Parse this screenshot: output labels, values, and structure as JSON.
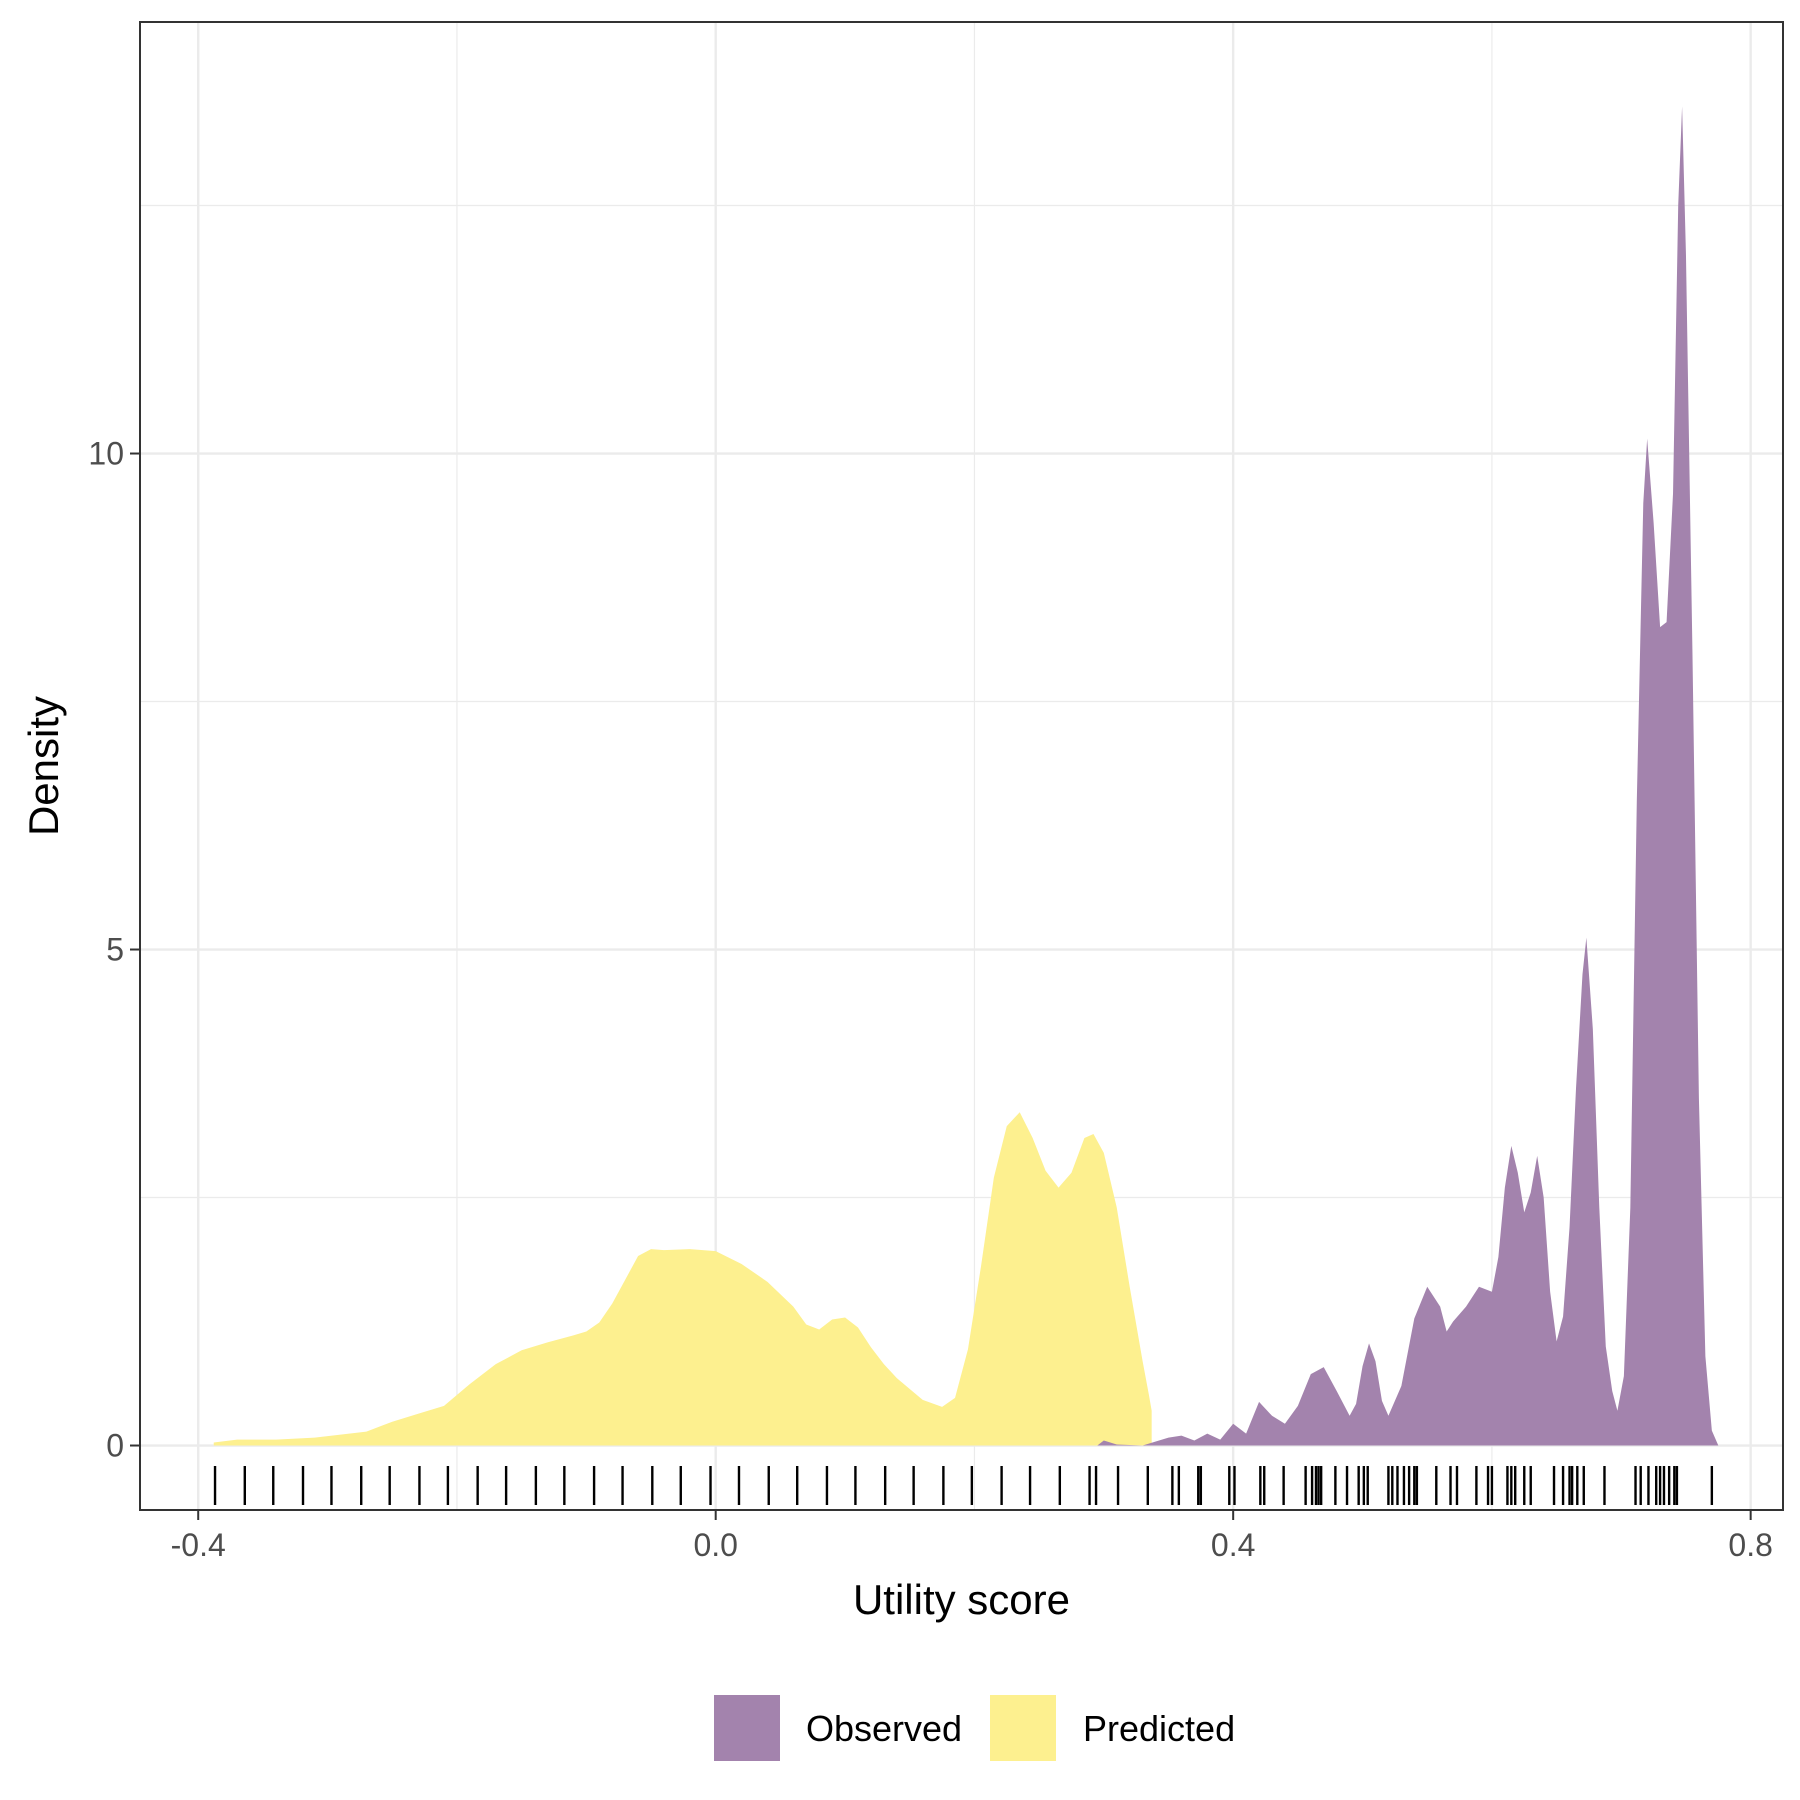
{
  "chart_data": {
    "type": "area",
    "xlabel": "Utility score",
    "ylabel": "Density",
    "xlim": [
      -0.445,
      0.825
    ],
    "ylim": [
      -0.65,
      14.35
    ],
    "x_ticks": [
      -0.4,
      0.0,
      0.4,
      0.8
    ],
    "x_tick_labels": [
      "-0.4",
      "0.0",
      "0.4",
      "0.8"
    ],
    "y_ticks": [
      0,
      5,
      10
    ],
    "y_tick_labels": [
      "0",
      "5",
      "10"
    ],
    "grid": true,
    "legend_position": "bottom",
    "legend": [
      {
        "label": "Observed",
        "color": "#A383AD"
      },
      {
        "label": "Predicted",
        "color": "#FDF08F"
      }
    ],
    "series": [
      {
        "name": "Predicted",
        "color": "#FDF08F",
        "points": [
          [
            -0.388,
            0.03
          ],
          [
            -0.37,
            0.06
          ],
          [
            -0.34,
            0.06
          ],
          [
            -0.31,
            0.08
          ],
          [
            -0.29,
            0.11
          ],
          [
            -0.27,
            0.14
          ],
          [
            -0.25,
            0.24
          ],
          [
            -0.23,
            0.32
          ],
          [
            -0.21,
            0.4
          ],
          [
            -0.19,
            0.62
          ],
          [
            -0.17,
            0.82
          ],
          [
            -0.15,
            0.96
          ],
          [
            -0.13,
            1.04
          ],
          [
            -0.11,
            1.11
          ],
          [
            -0.1,
            1.15
          ],
          [
            -0.09,
            1.24
          ],
          [
            -0.08,
            1.43
          ],
          [
            -0.07,
            1.67
          ],
          [
            -0.06,
            1.91
          ],
          [
            -0.05,
            1.98
          ],
          [
            -0.04,
            1.97
          ],
          [
            -0.02,
            1.98
          ],
          [
            0.0,
            1.96
          ],
          [
            0.02,
            1.83
          ],
          [
            0.04,
            1.65
          ],
          [
            0.06,
            1.4
          ],
          [
            0.07,
            1.22
          ],
          [
            0.08,
            1.17
          ],
          [
            0.09,
            1.27
          ],
          [
            0.1,
            1.29
          ],
          [
            0.11,
            1.19
          ],
          [
            0.12,
            0.99
          ],
          [
            0.13,
            0.82
          ],
          [
            0.14,
            0.68
          ],
          [
            0.16,
            0.46
          ],
          [
            0.175,
            0.39
          ],
          [
            0.185,
            0.48
          ],
          [
            0.195,
            0.97
          ],
          [
            0.205,
            1.8
          ],
          [
            0.215,
            2.7
          ],
          [
            0.225,
            3.22
          ],
          [
            0.235,
            3.36
          ],
          [
            0.245,
            3.1
          ],
          [
            0.255,
            2.77
          ],
          [
            0.265,
            2.6
          ],
          [
            0.275,
            2.75
          ],
          [
            0.285,
            3.1
          ],
          [
            0.292,
            3.14
          ],
          [
            0.3,
            2.95
          ],
          [
            0.31,
            2.4
          ],
          [
            0.32,
            1.6
          ],
          [
            0.33,
            0.85
          ],
          [
            0.335,
            0.5
          ],
          [
            0.337,
            0.35
          ]
        ]
      },
      {
        "name": "Observed",
        "color": "#A383AD",
        "points": [
          [
            0.295,
            0.0
          ],
          [
            0.3,
            0.05
          ],
          [
            0.31,
            0.01
          ],
          [
            0.33,
            0.0
          ],
          [
            0.35,
            0.08
          ],
          [
            0.36,
            0.1
          ],
          [
            0.37,
            0.05
          ],
          [
            0.38,
            0.12
          ],
          [
            0.39,
            0.06
          ],
          [
            0.4,
            0.22
          ],
          [
            0.41,
            0.12
          ],
          [
            0.42,
            0.44
          ],
          [
            0.43,
            0.3
          ],
          [
            0.44,
            0.22
          ],
          [
            0.45,
            0.4
          ],
          [
            0.46,
            0.72
          ],
          [
            0.47,
            0.79
          ],
          [
            0.48,
            0.55
          ],
          [
            0.49,
            0.3
          ],
          [
            0.495,
            0.42
          ],
          [
            0.5,
            0.8
          ],
          [
            0.505,
            1.03
          ],
          [
            0.51,
            0.85
          ],
          [
            0.515,
            0.45
          ],
          [
            0.52,
            0.3
          ],
          [
            0.53,
            0.6
          ],
          [
            0.54,
            1.28
          ],
          [
            0.55,
            1.6
          ],
          [
            0.56,
            1.4
          ],
          [
            0.565,
            1.15
          ],
          [
            0.57,
            1.25
          ],
          [
            0.58,
            1.4
          ],
          [
            0.59,
            1.6
          ],
          [
            0.6,
            1.55
          ],
          [
            0.605,
            1.9
          ],
          [
            0.61,
            2.6
          ],
          [
            0.615,
            3.02
          ],
          [
            0.62,
            2.75
          ],
          [
            0.625,
            2.35
          ],
          [
            0.63,
            2.55
          ],
          [
            0.635,
            2.92
          ],
          [
            0.64,
            2.5
          ],
          [
            0.645,
            1.55
          ],
          [
            0.65,
            1.05
          ],
          [
            0.655,
            1.3
          ],
          [
            0.66,
            2.2
          ],
          [
            0.665,
            3.6
          ],
          [
            0.67,
            4.75
          ],
          [
            0.673,
            5.12
          ],
          [
            0.678,
            4.2
          ],
          [
            0.683,
            2.4
          ],
          [
            0.688,
            1.0
          ],
          [
            0.693,
            0.55
          ],
          [
            0.697,
            0.35
          ],
          [
            0.702,
            0.7
          ],
          [
            0.707,
            2.4
          ],
          [
            0.712,
            6.5
          ],
          [
            0.717,
            9.5
          ],
          [
            0.72,
            10.15
          ],
          [
            0.725,
            9.3
          ],
          [
            0.73,
            8.25
          ],
          [
            0.735,
            8.3
          ],
          [
            0.74,
            9.6
          ],
          [
            0.744,
            12.5
          ],
          [
            0.747,
            13.5
          ],
          [
            0.75,
            12.0
          ],
          [
            0.755,
            8.0
          ],
          [
            0.76,
            3.5
          ],
          [
            0.765,
            0.9
          ],
          [
            0.77,
            0.15
          ],
          [
            0.775,
            0.0
          ]
        ]
      }
    ],
    "rug": [
      -0.387,
      -0.364,
      -0.342,
      -0.319,
      -0.297,
      -0.274,
      -0.252,
      -0.229,
      -0.207,
      -0.184,
      -0.162,
      -0.139,
      -0.117,
      -0.094,
      -0.072,
      -0.049,
      -0.027,
      -0.004,
      0.018,
      0.041,
      0.063,
      0.086,
      0.108,
      0.131,
      0.153,
      0.176,
      0.198,
      0.221,
      0.243,
      0.266,
      0.289,
      0.294,
      0.311,
      0.334,
      0.353,
      0.358,
      0.373,
      0.375,
      0.397,
      0.401,
      0.421,
      0.424,
      0.439,
      0.456,
      0.461,
      0.464,
      0.466,
      0.468,
      0.479,
      0.488,
      0.497,
      0.501,
      0.504,
      0.52,
      0.523,
      0.527,
      0.532,
      0.536,
      0.54,
      0.542,
      0.557,
      0.568,
      0.573,
      0.588,
      0.597,
      0.6,
      0.612,
      0.615,
      0.618,
      0.625,
      0.63,
      0.648,
      0.655,
      0.66,
      0.662,
      0.666,
      0.671,
      0.687,
      0.711,
      0.715,
      0.721,
      0.727,
      0.73,
      0.733,
      0.737,
      0.741,
      0.743,
      0.77
    ]
  }
}
